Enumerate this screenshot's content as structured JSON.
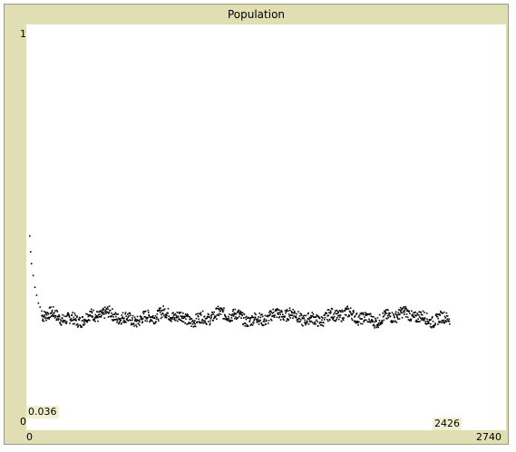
{
  "plot": {
    "title": "Population",
    "y_axis": {
      "max_label": "1",
      "min_label": "0"
    },
    "x_axis": {
      "min_label": "0",
      "max_label": "2740"
    },
    "readouts": {
      "y_value": "0.036",
      "x_value": "2426"
    },
    "colors": {
      "background": "#e0dfb4",
      "plot_area": "#ffffff",
      "points": "#000000"
    }
  },
  "chart_data": {
    "type": "scatter",
    "title": "Population",
    "xlim": [
      0,
      2740
    ],
    "ylim": [
      0,
      1
    ],
    "grid": false,
    "description_values": {
      "initial_drop": [
        [
          0,
          0.48
        ],
        [
          5,
          0.44
        ],
        [
          10,
          0.41
        ],
        [
          20,
          0.38
        ],
        [
          30,
          0.35
        ],
        [
          40,
          0.33
        ],
        [
          50,
          0.31
        ],
        [
          60,
          0.3
        ],
        [
          70,
          0.29
        ]
      ],
      "steady_state_mean": 0.275,
      "steady_state_range": [
        0.25,
        0.3
      ],
      "last_x": 2426
    }
  }
}
